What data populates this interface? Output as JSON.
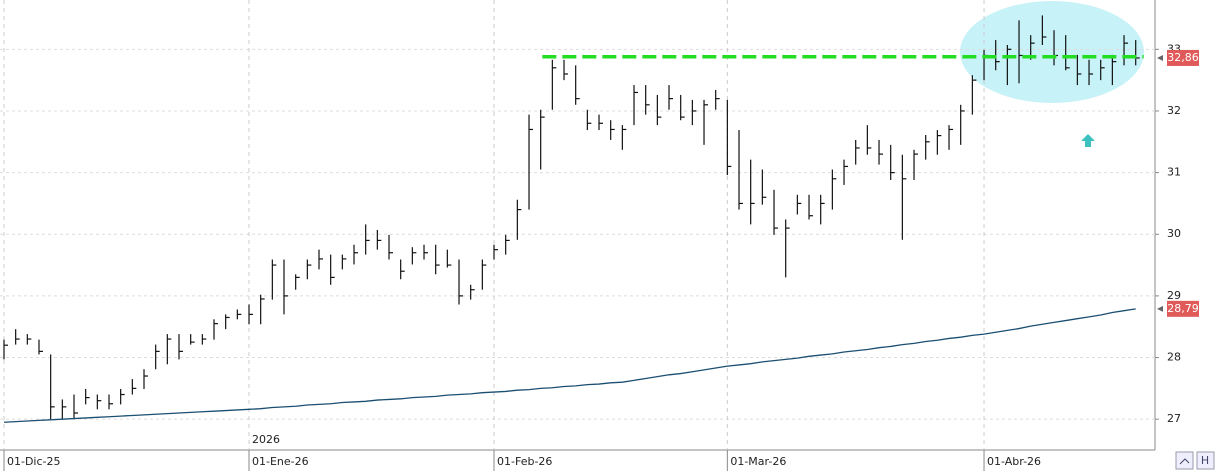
{
  "chart_data": {
    "type": "ohlc",
    "year_label": "2026",
    "categories": [
      "01-Dic-25",
      null,
      null,
      null,
      null,
      null,
      null,
      null,
      null,
      null,
      null,
      null,
      null,
      null,
      null,
      null,
      null,
      null,
      null,
      null,
      null,
      "01-Ene-26",
      null,
      null,
      null,
      null,
      null,
      null,
      null,
      null,
      null,
      null,
      null,
      null,
      null,
      null,
      null,
      null,
      null,
      null,
      null,
      null,
      "01-Feb-26",
      null,
      null,
      null,
      null,
      null,
      null,
      null,
      null,
      null,
      null,
      null,
      null,
      null,
      null,
      null,
      null,
      null,
      null,
      null,
      "01-Mar-26",
      null,
      null,
      null,
      null,
      null,
      null,
      null,
      null,
      null,
      null,
      null,
      null,
      null,
      null,
      null,
      null,
      null,
      null,
      null,
      null,
      null,
      "01-Abr-26",
      null,
      null,
      null,
      null,
      null,
      null,
      null,
      null,
      null,
      null,
      null,
      null,
      null
    ],
    "high": [
      28.29,
      28.46,
      28.38,
      28.29,
      28.05,
      27.32,
      27.4,
      27.49,
      27.4,
      27.4,
      27.49,
      27.65,
      27.81,
      28.21,
      28.38,
      28.38,
      28.38,
      28.38,
      28.62,
      28.7,
      28.78,
      28.86,
      29.02,
      29.59,
      29.59,
      29.35,
      29.59,
      29.75,
      29.67,
      29.67,
      29.83,
      30.16,
      30.07,
      29.99,
      29.59,
      29.79,
      29.83,
      29.83,
      29.75,
      29.59,
      29.18,
      29.59,
      29.83,
      29.99,
      30.56,
      31.94,
      32.02,
      32.83,
      32.83,
      32.74,
      32.02,
      31.94,
      31.85,
      31.77,
      32.42,
      32.42,
      32.26,
      32.42,
      32.26,
      32.18,
      32.18,
      32.34,
      32.18,
      31.69,
      31.21,
      31.05,
      30.72,
      30.24,
      30.64,
      30.64,
      30.64,
      31.05,
      31.21,
      31.53,
      31.77,
      31.53,
      31.45,
      31.29,
      31.37,
      31.61,
      31.69,
      31.77,
      32.1,
      32.58,
      32.99,
      33.15,
      33.07,
      33.47,
      33.23,
      33.55,
      33.31,
      33.23,
      32.91,
      32.83,
      32.83,
      32.91,
      33.23,
      33.15
    ],
    "low": [
      27.97,
      28.21,
      28.21,
      28.05,
      27.0,
      27.0,
      27.0,
      27.24,
      27.16,
      27.16,
      27.24,
      27.4,
      27.49,
      27.81,
      27.89,
      27.97,
      28.21,
      28.21,
      28.29,
      28.46,
      28.62,
      28.54,
      28.54,
      28.94,
      28.7,
      29.1,
      29.27,
      29.43,
      29.18,
      29.43,
      29.51,
      29.67,
      29.75,
      29.59,
      29.27,
      29.51,
      29.59,
      29.35,
      29.46,
      28.86,
      28.94,
      29.1,
      29.59,
      29.67,
      29.91,
      30.4,
      31.05,
      32.02,
      32.5,
      32.1,
      31.69,
      31.69,
      31.53,
      31.37,
      31.77,
      31.94,
      31.77,
      32.02,
      31.85,
      31.77,
      31.45,
      32.02,
      30.96,
      30.4,
      30.16,
      30.48,
      29.99,
      29.3,
      30.32,
      30.24,
      30.16,
      30.4,
      30.8,
      31.13,
      31.29,
      31.13,
      30.88,
      29.91,
      30.88,
      31.21,
      31.29,
      31.37,
      31.45,
      31.94,
      32.5,
      32.66,
      32.42,
      32.45,
      32.83,
      33.07,
      32.74,
      32.66,
      32.42,
      32.42,
      32.5,
      32.42,
      32.74,
      32.74
    ],
    "close": [
      28.2,
      28.3,
      28.3,
      28.1,
      27.2,
      27.2,
      27.1,
      27.35,
      27.3,
      27.25,
      27.4,
      27.5,
      27.7,
      28.1,
      28.3,
      28.1,
      28.25,
      28.3,
      28.55,
      28.65,
      28.7,
      28.7,
      28.95,
      29.5,
      29.0,
      29.3,
      29.5,
      29.6,
      29.3,
      29.6,
      29.7,
      29.9,
      29.9,
      29.7,
      29.4,
      29.7,
      29.7,
      29.5,
      29.5,
      29.0,
      29.1,
      29.5,
      29.75,
      29.9,
      30.4,
      31.7,
      31.9,
      32.7,
      32.6,
      32.2,
      31.8,
      31.8,
      31.7,
      31.7,
      32.3,
      32.1,
      31.9,
      32.2,
      31.9,
      32.0,
      32.1,
      32.2,
      31.1,
      30.5,
      30.5,
      30.6,
      30.1,
      30.1,
      30.5,
      30.3,
      30.5,
      30.9,
      31.1,
      31.4,
      31.4,
      31.3,
      31.0,
      30.9,
      31.3,
      31.5,
      31.6,
      31.7,
      32.0,
      32.5,
      32.9,
      32.8,
      33.0,
      32.9,
      33.1,
      33.2,
      32.9,
      32.7,
      32.6,
      32.6,
      32.7,
      32.8,
      33.1,
      32.86
    ],
    "bar_color": "#111111",
    "moving_average": {
      "color": "#1b4f72",
      "values": [
        26.95,
        26.96,
        26.97,
        26.98,
        26.99,
        27.0,
        27.01,
        27.02,
        27.03,
        27.04,
        27.05,
        27.06,
        27.07,
        27.08,
        27.09,
        27.1,
        27.11,
        27.12,
        27.13,
        27.14,
        27.15,
        27.16,
        27.17,
        27.19,
        27.2,
        27.21,
        27.23,
        27.24,
        27.25,
        27.27,
        27.28,
        27.29,
        27.31,
        27.32,
        27.33,
        27.35,
        27.36,
        27.37,
        27.39,
        27.4,
        27.41,
        27.43,
        27.44,
        27.45,
        27.47,
        27.48,
        27.5,
        27.51,
        27.53,
        27.54,
        27.56,
        27.57,
        27.59,
        27.6,
        27.63,
        27.66,
        27.69,
        27.72,
        27.74,
        27.77,
        27.8,
        27.83,
        27.86,
        27.88,
        27.9,
        27.93,
        27.95,
        27.97,
        27.99,
        28.02,
        28.04,
        28.06,
        28.09,
        28.11,
        28.13,
        28.16,
        28.18,
        28.21,
        28.23,
        28.26,
        28.28,
        28.31,
        28.33,
        28.36,
        28.38,
        28.41,
        28.44,
        28.47,
        28.51,
        28.54,
        28.57,
        28.6,
        28.63,
        28.66,
        28.69,
        28.73,
        28.76,
        28.79
      ]
    },
    "last_labels": [
      {
        "value": 32.86,
        "label": "32,86"
      },
      {
        "value": 28.79,
        "label": "28,79"
      }
    ],
    "label_color": "#e05a5a",
    "resistance": {
      "value": 32.88,
      "start_index": 47,
      "color": "#22dd22"
    },
    "ylim": [
      26.5,
      33.8
    ],
    "yticks": [
      27,
      28,
      29,
      30,
      31,
      32,
      33
    ],
    "grid": true
  }
}
